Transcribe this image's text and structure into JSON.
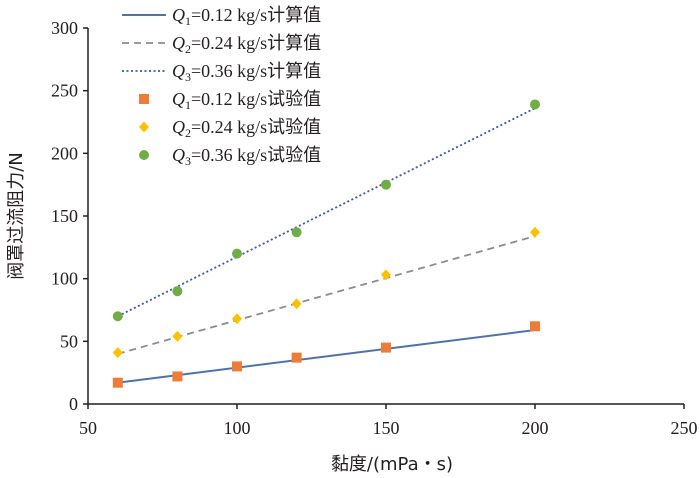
{
  "chart_data": {
    "type": "scatter",
    "title": "",
    "xlabel": "黏度/(mPa・s)",
    "ylabel": "阀罩过流阻力/N",
    "xlim": [
      50,
      250
    ],
    "ylim": [
      0,
      300
    ],
    "xticks": [
      50,
      100,
      150,
      200,
      250
    ],
    "yticks": [
      0,
      50,
      100,
      150,
      200,
      250,
      300
    ],
    "grid": false,
    "legend_position": "top-left",
    "series": [
      {
        "name": "Q1=0.12 kg/s计算值",
        "q": "Q",
        "sub": "1",
        "rest": "=0.12 kg/s计算值",
        "kind": "line",
        "dash": "solid",
        "color": "#4f73a8",
        "x": [
          60,
          200
        ],
        "y": [
          17,
          59
        ]
      },
      {
        "name": "Q2=0.24 kg/s计算值",
        "q": "Q",
        "sub": "2",
        "rest": "=0.24 kg/s计算值",
        "kind": "line",
        "dash": "dashed",
        "color": "#8e8b89",
        "x": [
          60,
          200
        ],
        "y": [
          40,
          134
        ]
      },
      {
        "name": "Q3=0.36 kg/s计算值",
        "q": "Q",
        "sub": "3",
        "rest": "=0.36 kg/s计算值",
        "kind": "line",
        "dash": "dotted",
        "color": "#3a57a8",
        "x": [
          60,
          200
        ],
        "y": [
          70,
          236
        ]
      },
      {
        "name": "Q1=0.12 kg/s试验值",
        "q": "Q",
        "sub": "1",
        "rest": "=0.12 kg/s试验值",
        "kind": "points",
        "marker": "square",
        "color": "#ed7b3a",
        "x": [
          60,
          80,
          100,
          120,
          150,
          200
        ],
        "y": [
          17,
          22,
          30,
          37,
          45,
          62
        ]
      },
      {
        "name": "Q2=0.24 kg/s试验值",
        "q": "Q",
        "sub": "2",
        "rest": "=0.24 kg/s试验值",
        "kind": "points",
        "marker": "diamond",
        "color": "#ffc000",
        "x": [
          60,
          80,
          100,
          120,
          150,
          200
        ],
        "y": [
          41,
          54,
          68,
          80,
          103,
          137
        ]
      },
      {
        "name": "Q3=0.36 kg/s试验值",
        "q": "Q",
        "sub": "3",
        "rest": "=0.36 kg/s试验值",
        "kind": "points",
        "marker": "circle",
        "color": "#70ad47",
        "x": [
          60,
          80,
          100,
          120,
          150,
          200
        ],
        "y": [
          70,
          90,
          120,
          137,
          175,
          239
        ]
      }
    ]
  }
}
